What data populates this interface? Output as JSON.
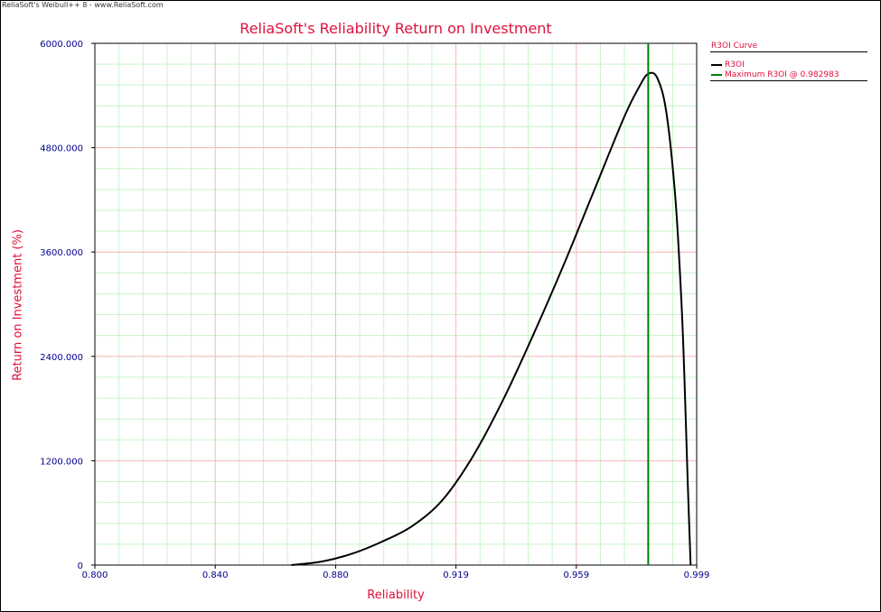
{
  "window": {
    "watermark": "ReliaSoft's Weibull++ 8 - www.ReliaSoft.com"
  },
  "chart_data": {
    "type": "line",
    "title": "ReliaSoft's Reliability Return on Investment",
    "xlabel": "Reliability",
    "ylabel": "Return on Investment (%)",
    "xlim": [
      0.8,
      0.999
    ],
    "ylim": [
      0,
      6000
    ],
    "x_ticks": [
      "0.800",
      "0.840",
      "0.880",
      "0.919",
      "0.959",
      "0.999"
    ],
    "y_ticks": [
      "0",
      "1200.000",
      "2400.000",
      "3600.000",
      "4800.000",
      "6000.000"
    ],
    "grid": true,
    "legend_position": "right",
    "legend_title": "R3OI Curve",
    "colors": {
      "grid_major": "#f4b6b6",
      "grid_minor": "#c9f3c9",
      "axis_text": "#00008b",
      "title": "#e0103a"
    },
    "series": [
      {
        "name": "R3OI",
        "color": "#000000",
        "x": [
          0.865,
          0.875,
          0.885,
          0.895,
          0.905,
          0.915,
          0.925,
          0.935,
          0.945,
          0.955,
          0.965,
          0.975,
          0.98,
          0.983,
          0.986,
          0.989,
          0.992,
          0.994,
          0.995,
          0.996,
          0.997
        ],
        "y": [
          0,
          40,
          130,
          270,
          450,
          750,
          1250,
          1900,
          2650,
          3450,
          4300,
          5150,
          5500,
          5650,
          5600,
          5200,
          4200,
          3000,
          2100,
          1000,
          0
        ]
      },
      {
        "name": "Maximum R3OI @ 0.982983",
        "color": "#008000",
        "type": "vline",
        "x": [
          0.982983,
          0.982983
        ],
        "y": [
          0,
          6000
        ]
      }
    ]
  }
}
